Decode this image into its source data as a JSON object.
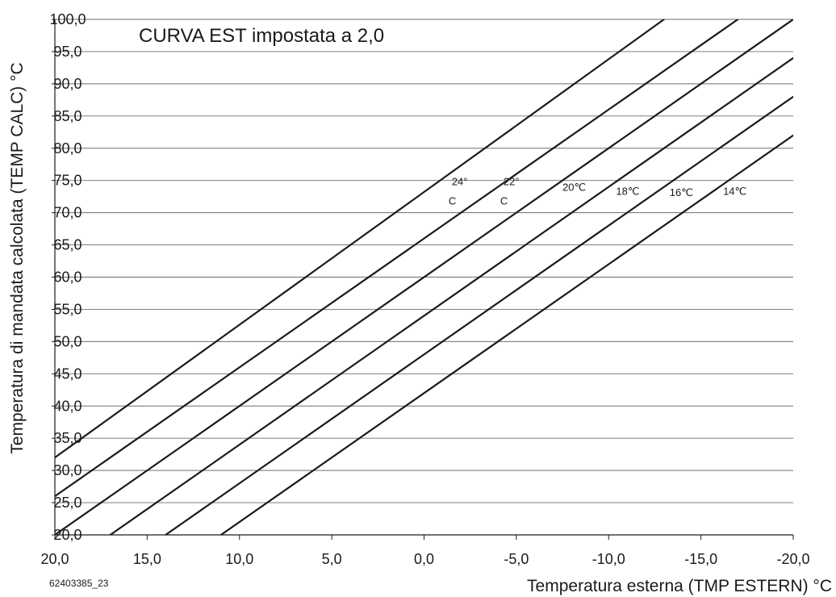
{
  "chart_data": {
    "type": "line",
    "title": "CURVA EST impostata a 2,0",
    "xlabel": "Temperatura esterna (TMP ESTERN) °C",
    "ylabel": "Temperatura di mandata calcolata (TEMP CALC) °C",
    "xlim": [
      20,
      -20
    ],
    "ylim": [
      20,
      100
    ],
    "x_ticks": [
      20,
      15,
      10,
      5,
      0,
      -5,
      -10,
      -15,
      -20
    ],
    "x_tick_labels": [
      "20,0",
      "15,0",
      "10,0",
      "5,0",
      "0,0",
      "-5,0",
      "-10,0",
      "-15,0",
      "-20,0"
    ],
    "y_ticks": [
      20,
      25,
      30,
      35,
      40,
      45,
      50,
      55,
      60,
      65,
      70,
      75,
      80,
      85,
      90,
      95,
      100
    ],
    "y_tick_labels": [
      "20,0",
      "25,0",
      "30,0",
      "35,0",
      "40,0",
      "45,0",
      "50,0",
      "55,0",
      "60,0",
      "65,0",
      "70,0",
      "75,0",
      "80,0",
      "85,0",
      "90,0",
      "95,0",
      "100,0"
    ],
    "grid": "horizontal",
    "line_color": "#1a1a1a",
    "series": [
      {
        "name": "24°C",
        "label_lines": [
          "24°",
          "C"
        ],
        "label_at": [
          -1.5,
          74.3
        ],
        "x": [
          20,
          -13.0
        ],
        "y": [
          32,
          100
        ]
      },
      {
        "name": "22°C",
        "label_lines": [
          "22°",
          "C"
        ],
        "label_at": [
          -4.3,
          74.3
        ],
        "x": [
          20,
          -17.0
        ],
        "y": [
          26,
          100
        ]
      },
      {
        "name": "20°C",
        "label_lines": [
          "20℃"
        ],
        "label_at": [
          -7.5,
          73.4
        ],
        "x": [
          20,
          -20
        ],
        "y": [
          20,
          100
        ]
      },
      {
        "name": "18°C",
        "label_lines": [
          "18℃"
        ],
        "label_at": [
          -10.4,
          72.8
        ],
        "x": [
          17.5,
          -20
        ],
        "y": [
          19,
          94
        ]
      },
      {
        "name": "16°C",
        "label_lines": [
          "16℃"
        ],
        "label_at": [
          -13.3,
          72.6
        ],
        "x": [
          14.5,
          -20
        ],
        "y": [
          19,
          88
        ]
      },
      {
        "name": "14°C",
        "label_lines": [
          "14℃"
        ],
        "label_at": [
          -16.2,
          72.8
        ],
        "x": [
          11.5,
          -20
        ],
        "y": [
          19,
          82
        ]
      }
    ]
  },
  "footnote": "62403385_23"
}
